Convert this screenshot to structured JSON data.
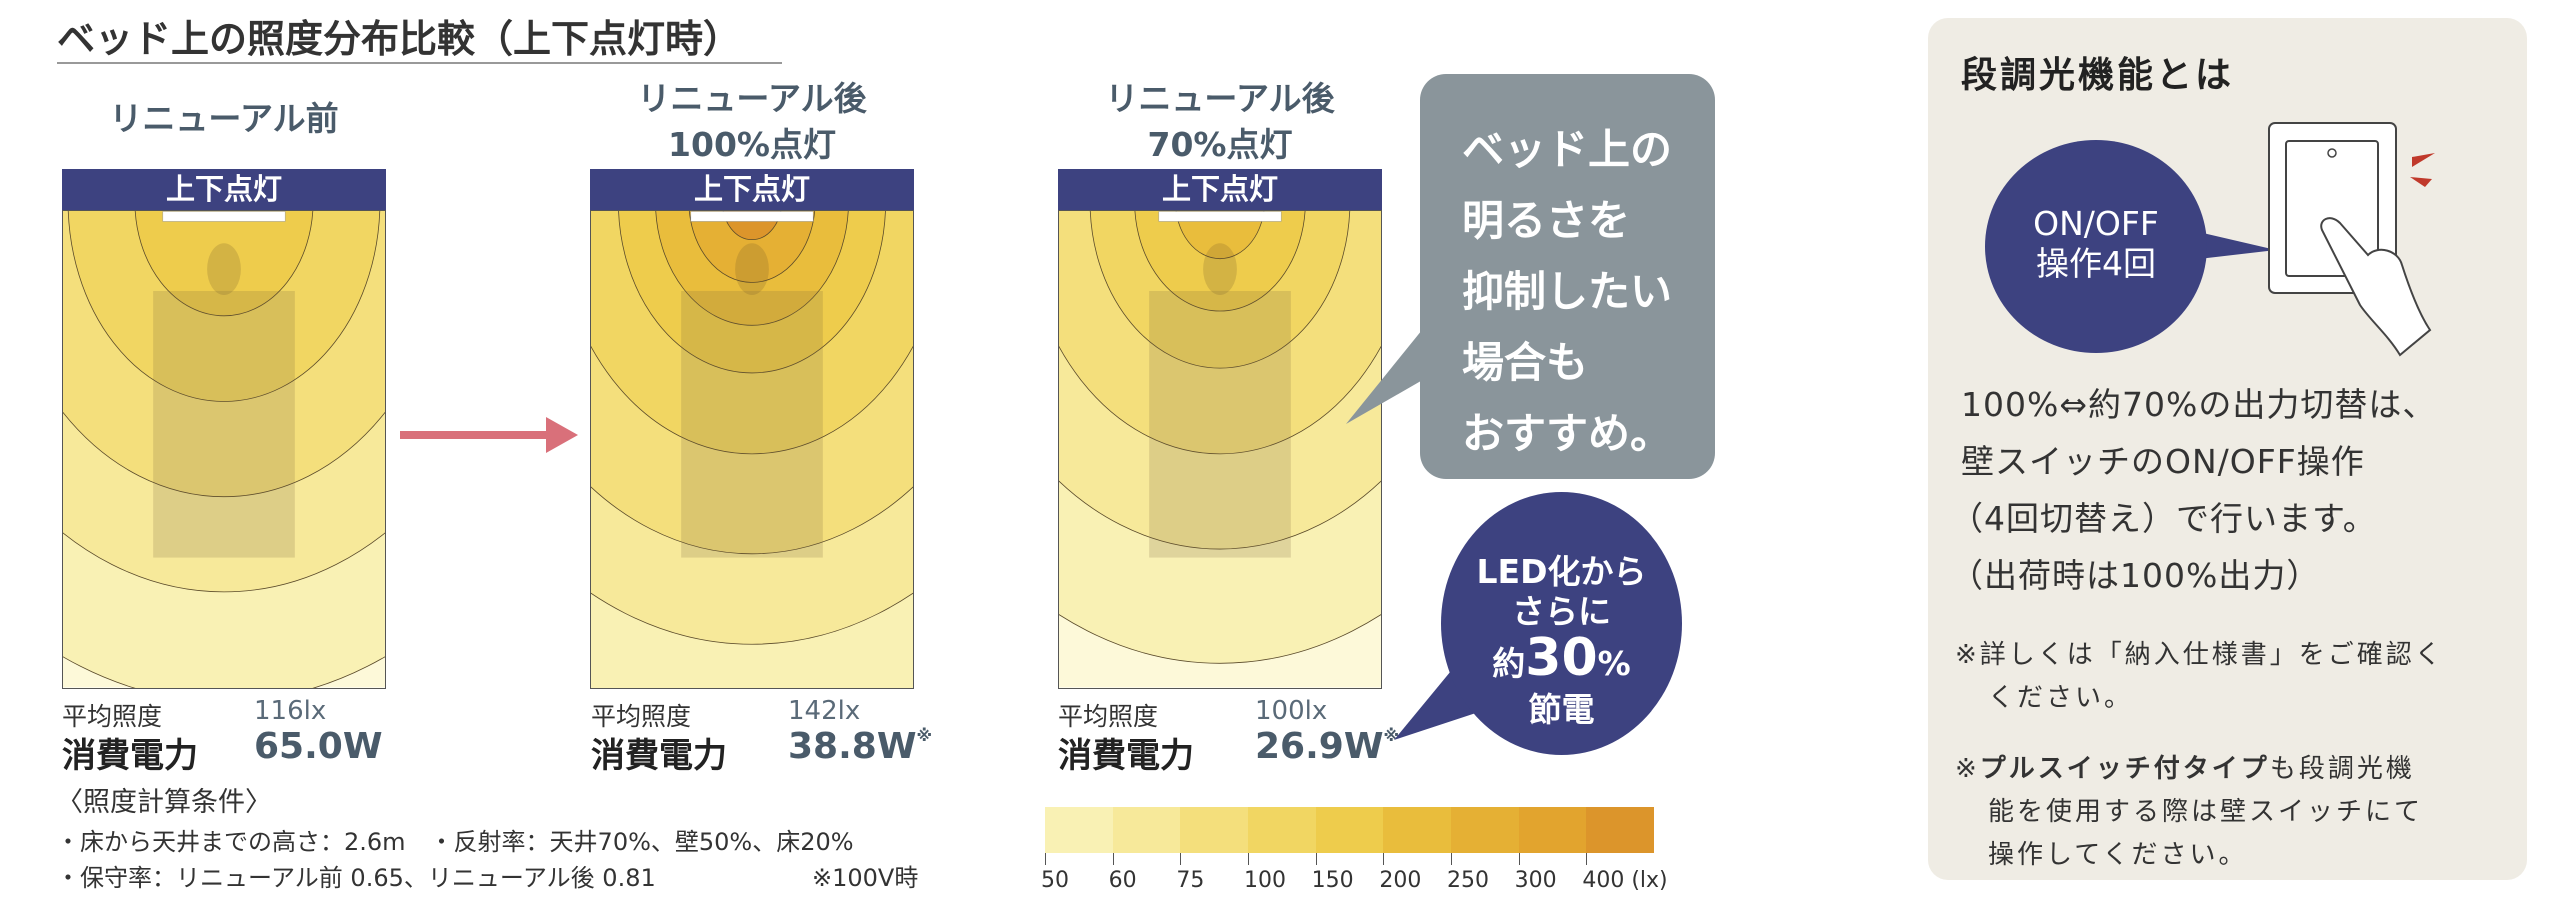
{
  "title": "ベッド上の照度分布比較（上下点灯時）",
  "columns": [
    {
      "label_lines": [
        "リニューアル前",
        ""
      ],
      "header": "上下点灯",
      "avg_label": "平均照度",
      "avg_value": "116lx",
      "power_label": "消費電力",
      "power_value": "65.0W",
      "power_note": ""
    },
    {
      "label_lines": [
        "リニューアル後",
        "100%点灯"
      ],
      "header": "上下点灯",
      "avg_label": "平均照度",
      "avg_value": "142lx",
      "power_label": "消費電力",
      "power_value": "38.8W",
      "power_note": "※"
    },
    {
      "label_lines": [
        "リニューアル後",
        "70%点灯"
      ],
      "header": "上下点灯",
      "avg_label": "平均照度",
      "avg_value": "100lx",
      "power_label": "消費電力",
      "power_value": "26.9W",
      "power_note": "※"
    }
  ],
  "callout_gray": [
    "ベッド上の",
    "明るさを",
    "抑制したい",
    "場合も",
    "おすすめ。"
  ],
  "callout_navy": {
    "line1": "LED化から",
    "line2": "さらに",
    "pre": "約",
    "big": "30",
    "post": "%",
    "line4": "節電"
  },
  "conditions": {
    "heading": "〈照度計算条件〉",
    "line1": "・床から天井までの高さ：2.6m　・反射率：天井70%、壁50%、床20%",
    "line2": "・保守率：リニューアル前 0.65、リニューアル後 0.81",
    "note": "※100V時"
  },
  "legend": {
    "labels": [
      "50",
      "60",
      "75",
      "100",
      "150",
      "200",
      "250",
      "300",
      "400 (lx)"
    ],
    "colors": [
      "#f9f1b4",
      "#f7e99a",
      "#f4df7c",
      "#f1d662",
      "#eecc4c",
      "#e9bd3c",
      "#e5b034",
      "#e2a42e",
      "#dc952b"
    ]
  },
  "colors": {
    "navy": "#3d4280",
    "gray_bubble": "#8a959b",
    "arrow": "#d9707a",
    "panel_bg": "#efece4"
  },
  "panel": {
    "title": "段調光機能とは",
    "bubble_lines": [
      "ON/OFF",
      "操作4回"
    ],
    "body": [
      "100%⇔約70%の出力切替は、",
      "壁スイッチのON/OFF操作",
      "（4回切替え）で行います。",
      "（出荷時は100%出力）"
    ],
    "note1": [
      "※詳しくは「納入仕様書」をご確認く",
      "ください。"
    ],
    "note2_bold": "プルスイッチ付タイプ",
    "note2": [
      "※",
      "も段調光機",
      "能を使用する際は壁スイッチにて",
      "操作してください。"
    ]
  }
}
